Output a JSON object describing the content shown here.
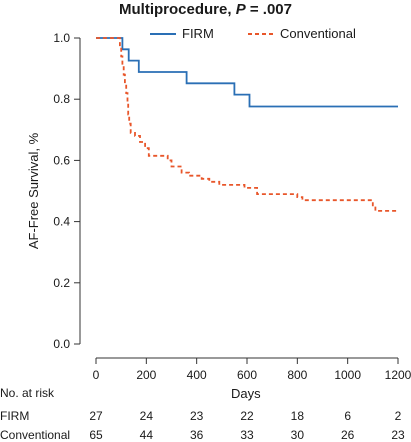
{
  "title": {
    "main": "Multiprocedure,",
    "p_symbol": "P",
    "p_value": "= .007"
  },
  "chart_data": {
    "type": "line",
    "subtype": "kaplan-meier",
    "xlabel": "Days",
    "ylabel": "AF-Free Survival, %",
    "xlim": [
      0,
      1200
    ],
    "ylim": [
      0,
      1.0
    ],
    "x_ticks": [
      "0",
      "200",
      "400",
      "600",
      "800",
      "1000",
      "1200"
    ],
    "x_tick_values": [
      0,
      200,
      400,
      600,
      800,
      1000,
      1200
    ],
    "y_ticks": [
      "0.0",
      "0.2",
      "0.4",
      "0.6",
      "0.8",
      "1.0"
    ],
    "y_tick_values": [
      0,
      0.2,
      0.4,
      0.6,
      0.8,
      1.0
    ],
    "legend_position": "top-center",
    "series": [
      {
        "name": "FIRM",
        "color": "#2a6fb5",
        "style": "solid",
        "steps": [
          [
            0,
            1.0
          ],
          [
            105,
            1.0
          ],
          [
            105,
            0.963
          ],
          [
            130,
            0.963
          ],
          [
            130,
            0.926
          ],
          [
            170,
            0.926
          ],
          [
            170,
            0.889
          ],
          [
            360,
            0.889
          ],
          [
            360,
            0.852
          ],
          [
            550,
            0.852
          ],
          [
            550,
            0.815
          ],
          [
            610,
            0.815
          ],
          [
            610,
            0.776
          ],
          [
            1200,
            0.776
          ]
        ]
      },
      {
        "name": "Conventional",
        "color": "#e8562a",
        "style": "dashed",
        "steps": [
          [
            0,
            1.0
          ],
          [
            95,
            1.0
          ],
          [
            95,
            0.97
          ],
          [
            100,
            0.97
          ],
          [
            100,
            0.94
          ],
          [
            105,
            0.94
          ],
          [
            105,
            0.91
          ],
          [
            110,
            0.91
          ],
          [
            110,
            0.88
          ],
          [
            115,
            0.88
          ],
          [
            115,
            0.85
          ],
          [
            120,
            0.85
          ],
          [
            120,
            0.82
          ],
          [
            125,
            0.82
          ],
          [
            125,
            0.79
          ],
          [
            128,
            0.79
          ],
          [
            128,
            0.75
          ],
          [
            132,
            0.75
          ],
          [
            132,
            0.72
          ],
          [
            138,
            0.72
          ],
          [
            138,
            0.69
          ],
          [
            155,
            0.69
          ],
          [
            155,
            0.68
          ],
          [
            175,
            0.68
          ],
          [
            175,
            0.66
          ],
          [
            195,
            0.66
          ],
          [
            195,
            0.64
          ],
          [
            210,
            0.64
          ],
          [
            210,
            0.615
          ],
          [
            285,
            0.615
          ],
          [
            285,
            0.6
          ],
          [
            300,
            0.6
          ],
          [
            300,
            0.58
          ],
          [
            340,
            0.58
          ],
          [
            340,
            0.56
          ],
          [
            370,
            0.56
          ],
          [
            370,
            0.55
          ],
          [
            420,
            0.55
          ],
          [
            420,
            0.54
          ],
          [
            450,
            0.54
          ],
          [
            450,
            0.53
          ],
          [
            490,
            0.53
          ],
          [
            490,
            0.52
          ],
          [
            590,
            0.52
          ],
          [
            590,
            0.51
          ],
          [
            640,
            0.51
          ],
          [
            640,
            0.49
          ],
          [
            800,
            0.49
          ],
          [
            800,
            0.48
          ],
          [
            820,
            0.48
          ],
          [
            820,
            0.47
          ],
          [
            1100,
            0.47
          ],
          [
            1100,
            0.45
          ],
          [
            1110,
            0.45
          ],
          [
            1110,
            0.435
          ],
          [
            1200,
            0.435
          ]
        ]
      }
    ]
  },
  "risk_table": {
    "header": "No. at risk",
    "rows": [
      {
        "label": "FIRM",
        "values": [
          "27",
          "24",
          "23",
          "22",
          "18",
          "6",
          "2"
        ]
      },
      {
        "label": "Conventional",
        "values": [
          "65",
          "44",
          "36",
          "33",
          "30",
          "26",
          "23"
        ]
      }
    ]
  }
}
